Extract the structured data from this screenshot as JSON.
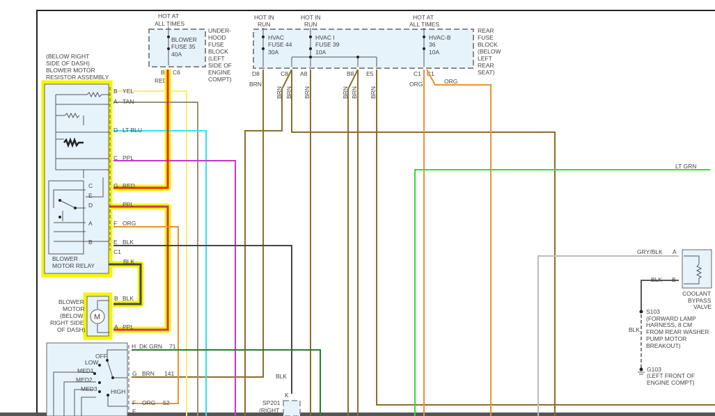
{
  "colors": {
    "YEL": "#f7f06a",
    "TAN": "#9b8e76",
    "LT_BLU": "#33e0f0",
    "PPL": "#cc33cc",
    "RED": "#e8251c",
    "ORG": "#f0902c",
    "BLK": "#444444",
    "BRN": "#8a6d2a",
    "DK_GRN": "#2a7a2a",
    "LT_GRN": "#33dd33",
    "GRY_BLK": "#bbbbbb",
    "highlight": "#f5f500"
  },
  "underhood": {
    "hot": [
      "HOT AT",
      "ALL TIMES"
    ],
    "fuse": [
      "BLOWER",
      "FUSE 35",
      "40A"
    ],
    "label": [
      "UNDER-",
      "HOOD",
      "FUSE",
      "BLOCK",
      "(LEFT",
      "SIDE OF",
      "ENGINE",
      "COMPT)"
    ],
    "pin_b": "B",
    "conn": "C6",
    "wire": "RED"
  },
  "rear": {
    "hot1": [
      "HOT IN",
      "RUN"
    ],
    "hot2": [
      "HOT IN",
      "RUN"
    ],
    "hot3": [
      "HOT AT",
      "ALL TIMES"
    ],
    "fuse1": [
      "HVAC",
      "FUSE 44",
      "30A"
    ],
    "fuse2": [
      "HVAC I",
      "FUSE 39",
      "10A"
    ],
    "fuse3": [
      "HVAC-B",
      "36",
      "10A"
    ],
    "label": [
      "REAR",
      "FUSE",
      "BLOCK",
      "(BELOW",
      "LEFT",
      "REAR",
      "SEAT)"
    ],
    "pins": [
      "D8",
      "C8",
      "A8",
      "B8",
      "E5",
      "C1",
      "C1"
    ],
    "wires": [
      "BRN",
      "BRN",
      "BRN",
      "BRN",
      "BRN",
      "BRN",
      "BRN",
      "ORG",
      "ORG"
    ]
  },
  "resistor": {
    "label": [
      "(BELOW RIGHT",
      "SIDE OF DASH)",
      "BLOWER MOTOR",
      "RESISTOR ASSEMBLY"
    ],
    "pins": [
      {
        "pin": "B",
        "wire": "YEL"
      },
      {
        "pin": "A",
        "wire": "TAN"
      },
      {
        "pin": "D",
        "wire": "LT BLU"
      },
      {
        "pin": "C",
        "wire": "PPL"
      },
      {
        "pin": "G",
        "wire": "RED"
      },
      {
        "pin": "",
        "wire": "PPL"
      },
      {
        "pin": "F",
        "wire": "ORG"
      },
      {
        "pin": "E",
        "wire": "BLK"
      }
    ],
    "conn": "C1"
  },
  "relay": {
    "label": [
      "BLOWER",
      "MOTOR RELAY"
    ],
    "pins": [
      "C",
      "E",
      "D",
      "A",
      "B"
    ],
    "wire": "BLK"
  },
  "motor": {
    "label": [
      "BLOWER",
      "MOTOR",
      "(BELOW",
      "RIGHT SIDE",
      "OF DASH)"
    ],
    "symbol": "M",
    "pins": [
      {
        "pin": "B",
        "wire": "BLK"
      },
      {
        "pin": "A",
        "wire": "PPL"
      }
    ]
  },
  "switch": {
    "positions": [
      "OFF",
      "LOW",
      "MED1",
      "MED2",
      "MED3",
      "HIGH"
    ],
    "pins": [
      {
        "pin": "H",
        "wire": "DK GRN",
        "circuit": "71"
      },
      {
        "pin": "G",
        "wire": "BRN",
        "circuit": "141"
      },
      {
        "pin": "F",
        "wire": "ORG",
        "circuit": "52"
      },
      {
        "pin": "F",
        "wire": "",
        "circuit": ""
      }
    ]
  },
  "splice": {
    "wire": "BLK",
    "pin": "K",
    "label": [
      "SP201",
      "(RIGHT"
    ]
  },
  "ltgrn": "LT GRN",
  "coolant": {
    "wire_a": "GRY/BLK",
    "pin_a": "A",
    "wire_b": "BLK",
    "pin_b": "B",
    "label": [
      "COOLANT",
      "BYPASS",
      "VALVE"
    ]
  },
  "s103": {
    "id": "S103",
    "label": [
      "(FORWARD LAMP",
      "HARNESS, 8 CM",
      "FROM REAR WASHER",
      "PUMP MOTOR",
      "BREAKOUT)"
    ],
    "wire": "BLK"
  },
  "g103": {
    "id": "G103",
    "label": [
      "(LEFT FRONT OF",
      "ENGINE COMPT)"
    ]
  }
}
